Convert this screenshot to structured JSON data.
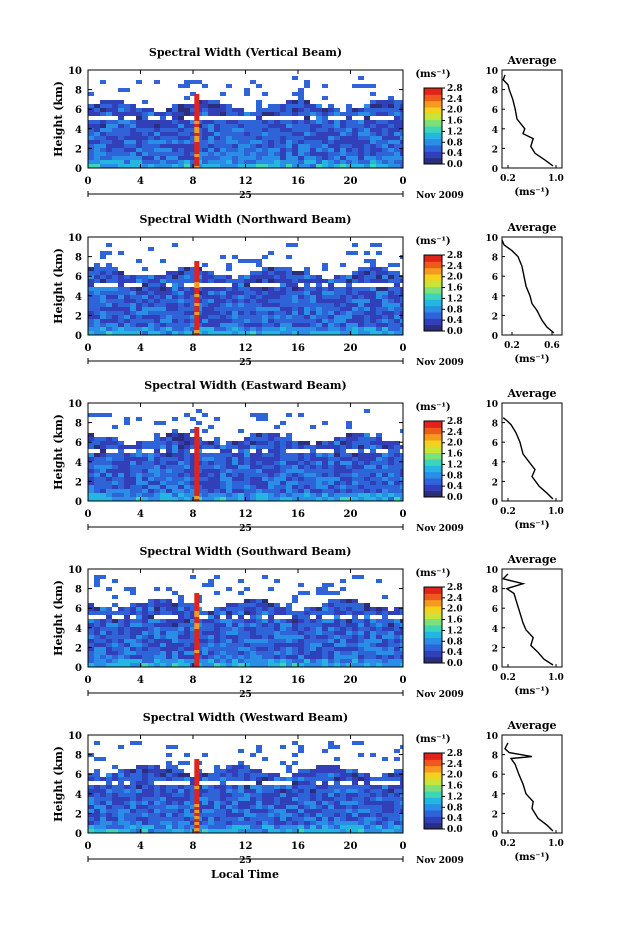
{
  "figure": {
    "xlabel": "Local Time",
    "date_label": "Nov 2009",
    "day_label": "25",
    "colorbar_unit": "(ms⁻¹)",
    "avg_title": "Average",
    "avg_unit": "(ms⁻¹)",
    "colors": {
      "colormap": [
        "#2b2e7c",
        "#3140b8",
        "#2f63d8",
        "#2a8ee6",
        "#24b6e0",
        "#3fd3b8",
        "#7ee07a",
        "#c6e43a",
        "#f3d21e",
        "#f59a1e",
        "#ee5a1c",
        "#e0231b"
      ]
    }
  },
  "chart_data": [
    {
      "type": "heatmap",
      "title": "Spectral Width (Vertical Beam)",
      "xlabel": "",
      "ylabel": "Height (km)",
      "xlim": [
        0,
        24
      ],
      "ylim": [
        0,
        10
      ],
      "xticks": [
        "0",
        "4",
        "8",
        "12",
        "16",
        "20",
        "0"
      ],
      "yticks": [
        "0",
        "2",
        "4",
        "6",
        "8",
        "10"
      ],
      "colorbar": {
        "ticks": [
          "0.0",
          "0.4",
          "0.8",
          "1.2",
          "1.6",
          "2.0",
          "2.4",
          "2.8"
        ],
        "range": [
          0,
          2.8
        ]
      },
      "average_profile": {
        "xticks": [
          "0.2",
          "1.0"
        ],
        "xlim": [
          0.1,
          1.1
        ],
        "height": [
          0.2,
          0.8,
          1.5,
          2.2,
          3.0,
          3.5,
          4.0,
          5.0,
          6.0,
          7.0,
          8.0,
          8.5,
          9.0,
          9.5
        ],
        "value": [
          0.95,
          0.82,
          0.65,
          0.58,
          0.62,
          0.45,
          0.48,
          0.35,
          0.32,
          0.28,
          0.22,
          0.2,
          0.12,
          0.15
        ]
      }
    },
    {
      "type": "heatmap",
      "title": "Spectral Width (Northward Beam)",
      "xlabel": "",
      "ylabel": "Height (km)",
      "xlim": [
        0,
        24
      ],
      "ylim": [
        0,
        10
      ],
      "xticks": [
        "0",
        "4",
        "8",
        "12",
        "16",
        "20",
        "0"
      ],
      "yticks": [
        "0",
        "2",
        "4",
        "6",
        "8",
        "10"
      ],
      "colorbar": {
        "ticks": [
          "0.0",
          "0.4",
          "0.8",
          "1.2",
          "1.6",
          "2.0",
          "2.4",
          "2.8"
        ],
        "range": [
          0,
          2.8
        ]
      },
      "average_profile": {
        "xticks": [
          "0.2",
          "0.6"
        ],
        "xlim": [
          0.1,
          0.7
        ],
        "height": [
          0.2,
          0.8,
          1.5,
          2.5,
          3.2,
          4.0,
          5.0,
          6.0,
          7.0,
          8.0,
          8.6,
          9.2,
          9.7
        ],
        "value": [
          0.62,
          0.55,
          0.5,
          0.45,
          0.4,
          0.38,
          0.34,
          0.32,
          0.3,
          0.26,
          0.2,
          0.12,
          0.1
        ]
      }
    },
    {
      "type": "heatmap",
      "title": "Spectral Width (Eastward Beam)",
      "xlabel": "",
      "ylabel": "Height (km)",
      "xlim": [
        0,
        24
      ],
      "ylim": [
        0,
        10
      ],
      "xticks": [
        "0",
        "4",
        "8",
        "12",
        "16",
        "20",
        "0"
      ],
      "yticks": [
        "0",
        "2",
        "4",
        "6",
        "8",
        "10"
      ],
      "colorbar": {
        "ticks": [
          "0.0",
          "0.4",
          "0.8",
          "1.2",
          "1.6",
          "2.0",
          "2.4",
          "2.8"
        ],
        "range": [
          0,
          2.8
        ]
      },
      "average_profile": {
        "xticks": [
          "0.2",
          "1.0"
        ],
        "xlim": [
          0.1,
          1.1
        ],
        "height": [
          0.2,
          0.8,
          1.5,
          2.5,
          3.2,
          4.0,
          4.8,
          6.0,
          7.0,
          7.8,
          8.2,
          8.5
        ],
        "value": [
          0.95,
          0.85,
          0.72,
          0.6,
          0.65,
          0.55,
          0.45,
          0.4,
          0.33,
          0.25,
          0.18,
          0.12
        ]
      }
    },
    {
      "type": "heatmap",
      "title": "Spectral Width (Southward Beam)",
      "xlabel": "",
      "ylabel": "Height (km)",
      "xlim": [
        0,
        24
      ],
      "ylim": [
        0,
        10
      ],
      "xticks": [
        "0",
        "4",
        "8",
        "12",
        "16",
        "20",
        "0"
      ],
      "yticks": [
        "0",
        "2",
        "4",
        "6",
        "8",
        "10"
      ],
      "colorbar": {
        "ticks": [
          "0.0",
          "0.4",
          "0.8",
          "1.2",
          "1.6",
          "2.0",
          "2.4",
          "2.8"
        ],
        "range": [
          0,
          2.8
        ]
      },
      "average_profile": {
        "xticks": [
          "0.2",
          "1.0"
        ],
        "xlim": [
          0.1,
          1.1
        ],
        "height": [
          0.2,
          0.8,
          1.5,
          2.2,
          3.0,
          3.8,
          4.5,
          5.5,
          6.5,
          7.5,
          8.0,
          8.5,
          9.0,
          9.5
        ],
        "value": [
          0.95,
          0.8,
          0.7,
          0.58,
          0.62,
          0.5,
          0.45,
          0.4,
          0.35,
          0.3,
          0.18,
          0.45,
          0.12,
          0.2
        ]
      }
    },
    {
      "type": "heatmap",
      "title": "Spectral Width (Westward Beam)",
      "xlabel": "Local Time",
      "ylabel": "Height (km)",
      "xlim": [
        0,
        24
      ],
      "ylim": [
        0,
        10
      ],
      "xticks": [
        "0",
        "4",
        "8",
        "12",
        "16",
        "20",
        "0"
      ],
      "yticks": [
        "0",
        "2",
        "4",
        "6",
        "8",
        "10"
      ],
      "colorbar": {
        "ticks": [
          "0.0",
          "0.4",
          "0.8",
          "1.2",
          "1.6",
          "2.0",
          "2.4",
          "2.8"
        ],
        "range": [
          0,
          2.8
        ]
      },
      "average_profile": {
        "xticks": [
          "0.2",
          "1.0"
        ],
        "xlim": [
          0.1,
          1.1
        ],
        "height": [
          0.2,
          0.8,
          1.5,
          2.5,
          3.2,
          4.0,
          5.0,
          6.0,
          7.0,
          7.6,
          7.8,
          8.2,
          8.6,
          9.2
        ],
        "value": [
          0.95,
          0.85,
          0.7,
          0.6,
          0.62,
          0.5,
          0.45,
          0.38,
          0.32,
          0.25,
          0.6,
          0.22,
          0.15,
          0.2
        ]
      }
    }
  ]
}
